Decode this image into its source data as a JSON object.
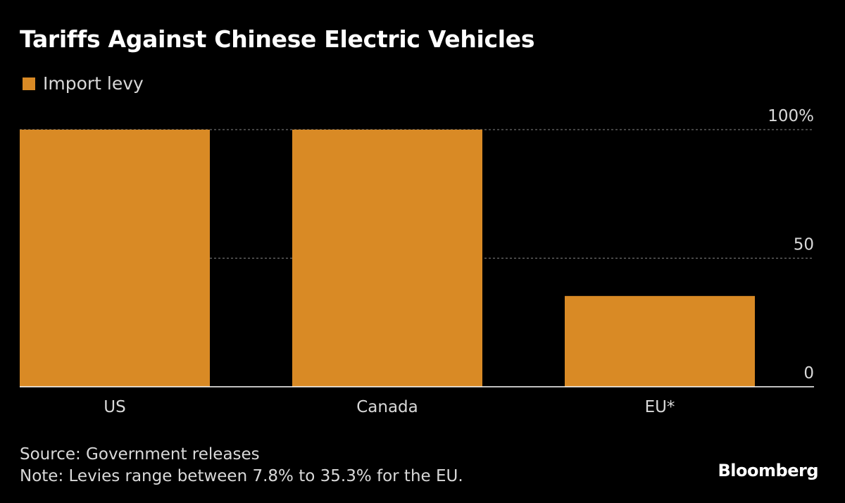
{
  "title": "Tariffs Against Chinese Electric Vehicles",
  "legend": {
    "label": "Import levy"
  },
  "colors": {
    "bar": "#d98a25",
    "background": "#000000",
    "grid": "#6e6e6e",
    "axis": "#ffffff",
    "text": "#d9d9d9"
  },
  "chart_data": {
    "type": "bar",
    "categories": [
      "US",
      "Canada",
      "EU*"
    ],
    "series": [
      {
        "name": "Import levy",
        "values": [
          100,
          100,
          35.3
        ]
      }
    ],
    "ylim": [
      0,
      100
    ],
    "yticks": [
      0,
      50,
      100
    ],
    "ytick_labels": [
      "0",
      "50",
      "100%"
    ],
    "xlabel": "",
    "ylabel": "",
    "grid": true,
    "y_axis_side": "right",
    "legend_position": "top-left"
  },
  "footer": {
    "source": "Source: Government releases",
    "note": "Note: Levies range between 7.8% to 35.3% for the EU.",
    "brand": "Bloomberg"
  }
}
